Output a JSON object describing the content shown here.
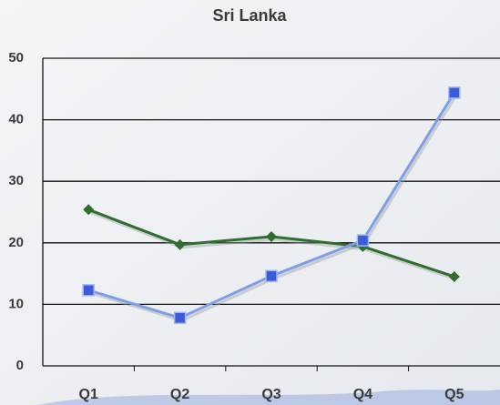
{
  "chart_data": {
    "type": "line",
    "title": "Sri Lanka",
    "categories": [
      "Q1",
      "Q2",
      "Q3",
      "Q4",
      "Q5"
    ],
    "series": [
      {
        "color": "#2f6e2f",
        "marker": "diamond",
        "values": [
          25.4,
          19.7,
          21,
          19.4,
          14.5
        ]
      },
      {
        "color": "#7e9ee6",
        "marker": "square",
        "values": [
          12.3,
          7.8,
          14.6,
          20.4,
          44.4
        ]
      }
    ],
    "ylim": [
      0,
      50
    ],
    "yticks": [
      0,
      10,
      20,
      30,
      40,
      50
    ],
    "grid": true
  }
}
